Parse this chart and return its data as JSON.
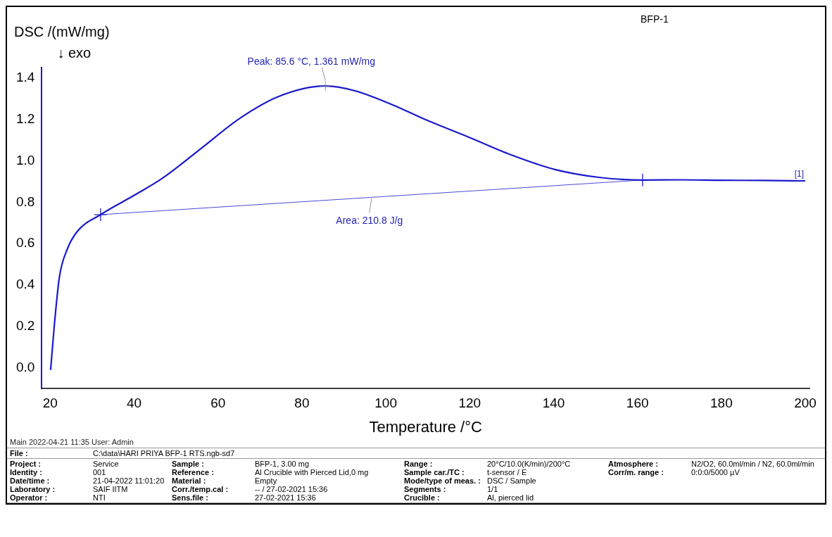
{
  "chart_data": {
    "type": "line",
    "xlabel": "Temperature /°C",
    "ylabel": "DSC /(mW/mg)",
    "xlim": [
      18,
      201
    ],
    "ylim": [
      -0.1,
      1.45
    ],
    "xticks": [
      20,
      40,
      60,
      80,
      100,
      120,
      140,
      160,
      180,
      200
    ],
    "yticks": [
      {
        "value": 0,
        "label": "0.0"
      },
      {
        "value": 0.2,
        "label": "0.2"
      },
      {
        "value": 0.4,
        "label": "0.4"
      },
      {
        "value": 0.6,
        "label": "0.6"
      },
      {
        "value": 0.8,
        "label": "0.8"
      },
      {
        "value": 1,
        "label": "1.0"
      },
      {
        "value": 1.2,
        "label": "1.2"
      },
      {
        "value": 1.4,
        "label": "1.4"
      }
    ],
    "grid": false,
    "legend": false,
    "series": [
      {
        "color": "#1a1acd",
        "marker": "none",
        "line_style": "solid",
        "x": [
          20.1,
          21,
          22.2,
          24,
          26.5,
          32,
          40.6,
          46.7,
          56,
          65.2,
          74.4,
          85.6,
          92.8,
          102.1,
          109.3,
          119.9,
          130.2,
          140.5,
          150.8,
          161.2,
          170,
          180,
          190,
          200
        ],
        "values": [
          -0.01,
          0.21,
          0.44,
          0.57,
          0.66,
          0.74,
          0.84,
          0.915,
          1.06,
          1.205,
          1.31,
          1.361,
          1.337,
          1.266,
          1.2,
          1.113,
          1.026,
          0.957,
          0.92,
          0.907,
          0.908,
          0.906,
          0.905,
          0.903
        ]
      },
      {
        "type": "line",
        "color": "#4a4ad8",
        "marker": "cross",
        "line_style": "solid",
        "x": [
          32,
          161.2
        ],
        "values": [
          0.74,
          0.907
        ]
      }
    ],
    "annotations": [
      {
        "text": "Peak: 85.6 °C, 1.361 mW/mg",
        "x": 85.6,
        "y": 1.361
      },
      {
        "text": "Area: 210.8 J/g",
        "x": 96.6,
        "y": 0.824
      },
      {
        "text": "[1]",
        "x": 200,
        "y": 0.903
      },
      "↓ exo",
      "BFP-1",
      "Main   2022-04-21 11:35   User: Admin",
      "File : C:\\data\\HARI PRIYA BFP-1 RTS.ngb-sd7",
      "Project : Service",
      "Identity : 001",
      "Date/time : 21-04-2022 11:01:20",
      "Laboratory : SAIF IITM",
      "Operator : NTI",
      "Sample : BFP-1, 3.00 mg",
      "Reference : Al Crucible with Pierced Lid,0 mg",
      "Material : Empty",
      "Corr./temp.cal : -- / 27-02-2021 15:36",
      "Sens.file : 27-02-2021 15:36",
      "Range : 20°C/10.0(K/min)/200°C",
      "Sample car./TC : t-sensor / E",
      "Mode/type of meas. : DSC / Sample",
      "Segments : 1/1",
      "Crucible : Al, pierced lid",
      "Atmosphere : N2/O2, 60.0ml/min / N2, 60.0ml/min",
      "Corr/m. range : 0:0:0/5000 µV"
    ]
  }
}
